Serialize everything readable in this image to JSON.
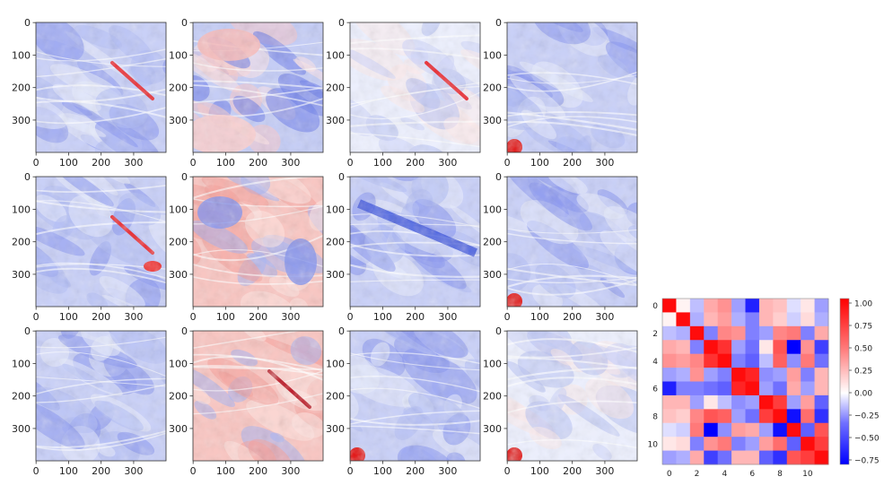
{
  "colors": {
    "cmap_low": "#0000ff",
    "cmap_mid": "#ffffff",
    "cmap_high": "#ff0000"
  },
  "chart_data": [
    {
      "type": "heatmap",
      "layout": "grid of 12 image panels (3 rows x 4 columns)",
      "panel_image": "400x400 map-like field rendered with a blue-white-red colormap",
      "x_ticks": [
        "0",
        "100",
        "200",
        "300"
      ],
      "y_ticks": [
        "0",
        "100",
        "200",
        "300"
      ],
      "panels": [
        {
          "dominant": "blue",
          "feature": "red streak center-right"
        },
        {
          "dominant": "mixed",
          "feature": "pink upper area and lower-left, blue ridges"
        },
        {
          "dominant": "white",
          "feature": "red streak center-right"
        },
        {
          "dominant": "blue",
          "feature": "red spot bottom-left"
        },
        {
          "dominant": "blue",
          "feature": "red patches center and bottom-right"
        },
        {
          "dominant": "red",
          "feature": "blue patches upper-left and right"
        },
        {
          "dominant": "blue",
          "feature": "dark blue band center"
        },
        {
          "dominant": "blue",
          "feature": "red spot bottom-left"
        },
        {
          "dominant": "blue",
          "feature": "white ridge lines"
        },
        {
          "dominant": "red",
          "feature": "dark red streak center-right"
        },
        {
          "dominant": "blue",
          "feature": "red spot bottom-left"
        },
        {
          "dominant": "white",
          "feature": "red spot bottom-left, blue ridges"
        }
      ]
    },
    {
      "type": "heatmap",
      "title": "",
      "x_ticks": [
        "0",
        "2",
        "4",
        "6",
        "8",
        "10"
      ],
      "y_ticks": [
        "0",
        "2",
        "4",
        "6",
        "8",
        "10"
      ],
      "colorbar": {
        "min": -0.8,
        "max": 1.05,
        "ticks": [
          "1.00",
          "0.75",
          "0.50",
          "0.25",
          "0.00",
          "−0.25",
          "−0.50",
          "−0.75"
        ]
      },
      "matrix": [
        [
          1.0,
          0.05,
          -0.2,
          0.35,
          0.45,
          -0.3,
          -0.7,
          0.3,
          0.25,
          -0.1,
          0.1,
          -0.3
        ],
        [
          0.05,
          1.0,
          -0.25,
          0.3,
          0.4,
          -0.25,
          -0.4,
          0.3,
          0.2,
          -0.15,
          0.15,
          -0.25
        ],
        [
          -0.2,
          -0.25,
          1.0,
          -0.4,
          0.5,
          0.45,
          -0.4,
          -0.3,
          0.5,
          0.55,
          -0.4,
          0.35
        ],
        [
          0.35,
          0.3,
          -0.4,
          1.0,
          0.85,
          -0.3,
          -0.45,
          0.1,
          0.7,
          -0.85,
          0.45,
          -0.6
        ],
        [
          0.45,
          0.4,
          0.5,
          0.85,
          1.0,
          -0.4,
          -0.5,
          -0.2,
          0.65,
          -0.35,
          0.55,
          -0.45
        ],
        [
          -0.3,
          -0.25,
          0.45,
          -0.3,
          -0.4,
          1.0,
          0.9,
          -0.35,
          -0.3,
          0.4,
          -0.4,
          0.3
        ],
        [
          -0.7,
          -0.4,
          -0.4,
          -0.45,
          -0.5,
          0.9,
          1.0,
          -0.3,
          -0.45,
          0.35,
          -0.3,
          0.3
        ],
        [
          0.3,
          0.3,
          -0.3,
          0.1,
          -0.2,
          -0.35,
          -0.3,
          1.0,
          0.8,
          -0.3,
          0.4,
          -0.5
        ],
        [
          0.25,
          0.2,
          0.5,
          0.7,
          0.65,
          -0.3,
          -0.45,
          0.8,
          1.0,
          -0.75,
          0.6,
          -0.65
        ],
        [
          -0.1,
          -0.15,
          0.55,
          -0.85,
          -0.35,
          0.4,
          0.35,
          -0.3,
          -0.75,
          1.0,
          -0.5,
          0.7
        ],
        [
          0.1,
          0.15,
          -0.4,
          0.45,
          0.55,
          -0.4,
          -0.3,
          0.4,
          0.6,
          -0.5,
          1.0,
          0.8
        ],
        [
          -0.3,
          -0.25,
          0.35,
          -0.6,
          -0.45,
          0.3,
          0.3,
          -0.5,
          -0.65,
          0.7,
          0.8,
          1.0
        ]
      ]
    }
  ]
}
